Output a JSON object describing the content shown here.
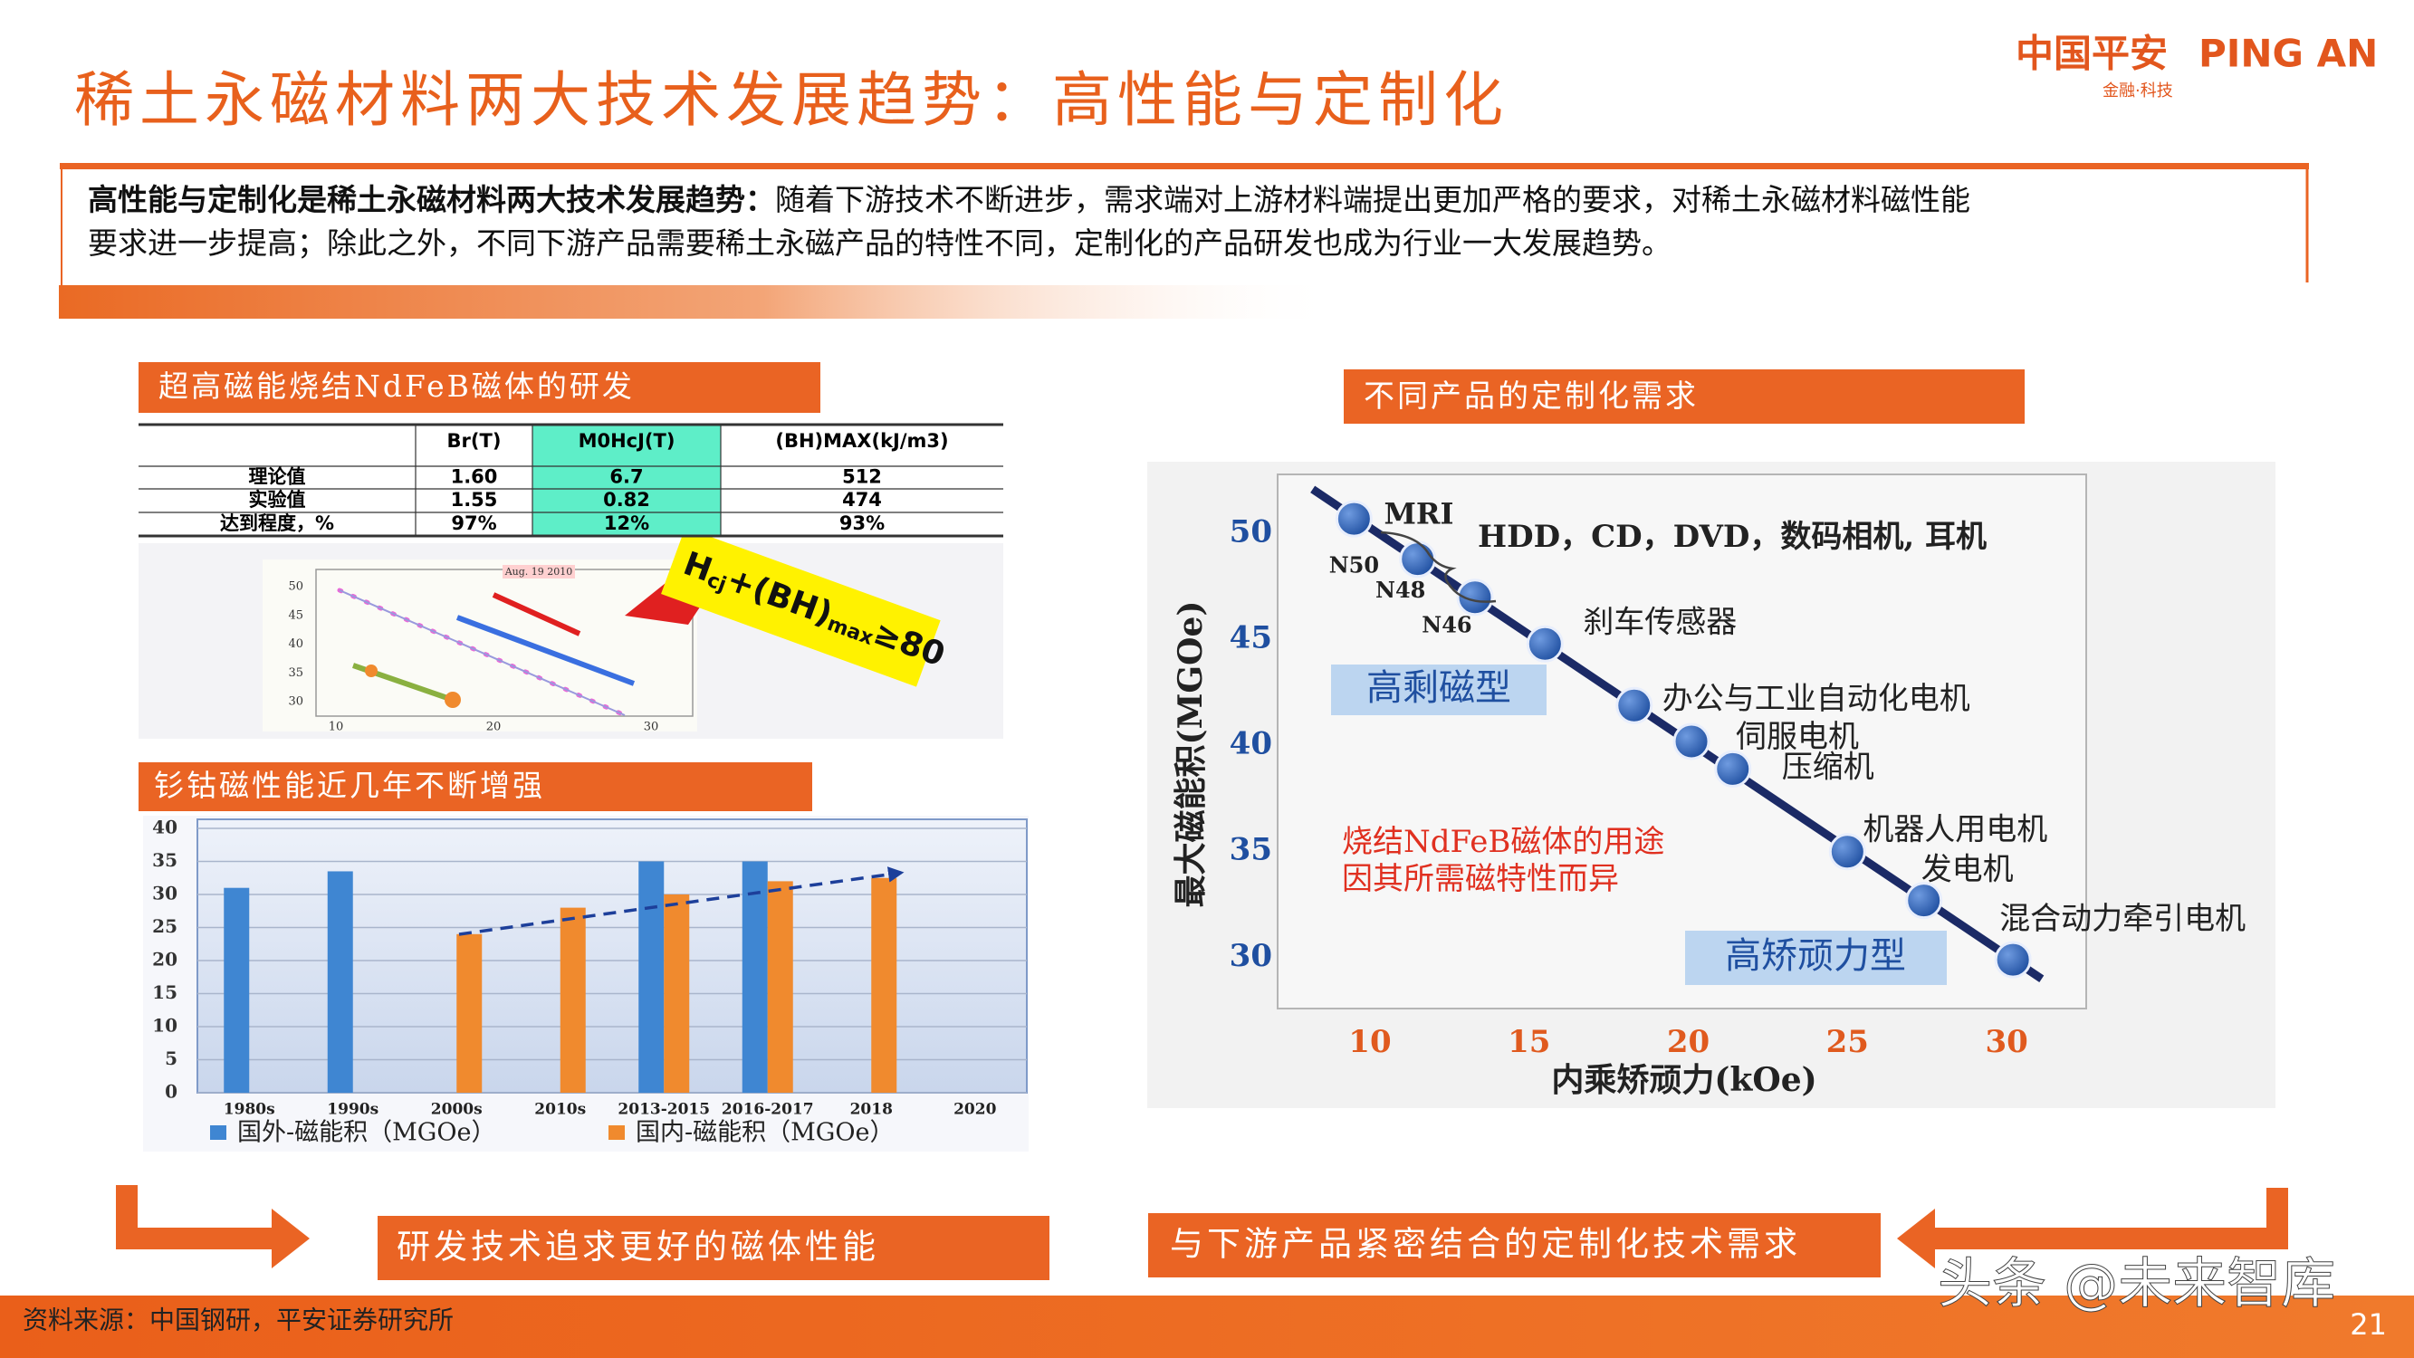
{
  "header": {
    "title": "稀土永磁材料两大技术发展趋势：高性能与定制化",
    "logo_cn": "中国平安",
    "logo_en": "PING AN",
    "logo_sub": "金融·科技"
  },
  "summary": {
    "lead": "高性能与定制化是稀土永磁材料两大技术发展趋势：",
    "line1": "随着下游技术不断进步，需求端对上游材料端提出更加严格的要求，对稀土永磁材料磁性能",
    "line2": "要求进一步提高；除此之外，不同下游产品需要稀土永磁产品的特性不同，定制化的产品研发也成为行业一大发展趋势。"
  },
  "sections": {
    "ndfeb_label": "超高磁能烧结NdFeB磁体的研发",
    "smco_label": "钐钴磁性能近几年不断增强",
    "custom_label": "不同产品的定制化需求"
  },
  "table": {
    "header": [
      "Br(T)",
      "M0HcJ(T)",
      "(BH)MAX(kJ/m3)"
    ],
    "rows": [
      [
        "理论值",
        "1.60",
        "6.7",
        "512"
      ],
      [
        "实验值",
        "1.55",
        "0.82",
        "474"
      ],
      [
        "达到程度，%",
        "97%",
        "12%",
        "93%"
      ]
    ]
  },
  "inset": {
    "banner": [
      "H",
      "cj",
      "+(BH)",
      "max",
      "≥80"
    ],
    "date": "Aug. 19 2010",
    "yticks": [
      50,
      45,
      40,
      35,
      30
    ],
    "xticks": [
      10,
      20,
      30
    ]
  },
  "chart_data": [
    {
      "type": "bar",
      "categories": [
        "1980s",
        "1990s",
        "2000s",
        "2010s",
        "2013-2015",
        "2016-2017",
        "2018",
        "2020"
      ],
      "series": [
        {
          "name": "国外-磁能积（MGOe）",
          "color": "#3f86d2",
          "values": [
            31,
            33.5,
            null,
            null,
            35,
            35,
            null,
            null
          ]
        },
        {
          "name": "国内-磁能积（MGOe）",
          "color": "#f08a2e",
          "values": [
            null,
            null,
            24,
            28,
            30,
            32,
            32.5,
            null
          ]
        }
      ],
      "ylim": [
        0,
        40
      ],
      "yticks": [
        0,
        5,
        10,
        15,
        20,
        25,
        30,
        35,
        40
      ],
      "grid": true
    },
    {
      "type": "scatter",
      "xlabel": "内乘矫顽力(kOe)",
      "ylabel": "最大磁能积(MGOe)",
      "x": [
        9.5,
        11.5,
        13.3,
        15.5,
        18.3,
        20.1,
        21.4,
        25,
        27.4,
        30.2
      ],
      "y": [
        50.7,
        48.8,
        47,
        44.8,
        41.9,
        40.2,
        38.9,
        35,
        32.7,
        29.9
      ],
      "point_labels": [
        "N50",
        "N48",
        "N46",
        "刹车传感器",
        "办公与工业自动化电机",
        "伺服电机",
        "压缩机",
        "机器人用电机",
        "发电机",
        "混合动力牵引电机"
      ],
      "color": "#2f63b0",
      "xlim": [
        7.1,
        32.5
      ],
      "ylim": [
        27.6,
        52.8
      ],
      "xticks": [
        10,
        15,
        20,
        25,
        30
      ],
      "yticks": [
        30,
        35,
        40,
        45,
        50
      ],
      "trend_line": {
        "x": [
          8.2,
          31.1
        ],
        "y": [
          52.1,
          29
        ],
        "color": "#1b2a66"
      },
      "annotations": {
        "group": "MRI",
        "devices": "HDD，CD，DVD，数码相机, 耳机",
        "high_remanence": "高剩磁型",
        "high_coercivity": "高矫顽力型",
        "note": [
          "烧结NdFeB磁体的用途",
          "因其所需磁特性而异"
        ]
      }
    }
  ],
  "callouts": {
    "left": "研发技术追求更好的磁体性能",
    "right": "与下游产品紧密结合的定制化技术需求"
  },
  "footer": {
    "source": "资料来源：中国钢研，平安证券研究所",
    "page": "21",
    "watermark": "头条 @未来智库"
  }
}
